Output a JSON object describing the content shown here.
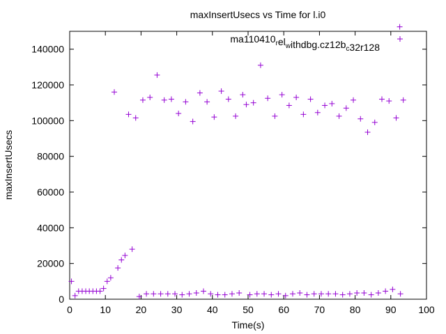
{
  "chart_data": {
    "type": "scatter",
    "title": "maxInsertUsecs vs Time for l.i0",
    "xlabel": "Time(s)",
    "ylabel": "maxInsertUsecs",
    "xlim": [
      0,
      100
    ],
    "ylim": [
      0,
      150000
    ],
    "grid": false,
    "legend_position": "top-right",
    "marker": "+",
    "x_ticks": [
      "0",
      "10",
      "20",
      "30",
      "40",
      "50",
      "60",
      "70",
      "80",
      "90",
      "100"
    ],
    "y_ticks": [
      "0",
      "20000",
      "40000",
      "60000",
      "80000",
      "100000",
      "120000",
      "140000"
    ],
    "series": [
      {
        "name": "ma110410_rel_withdbg.cz12b_c32r128",
        "legend_parts": [
          {
            "text": "ma110410",
            "sub": false
          },
          {
            "text": "r",
            "sub": true
          },
          {
            "text": "el",
            "sub": false
          },
          {
            "text": "w",
            "sub": true
          },
          {
            "text": "ithdbg.cz12b",
            "sub": false
          },
          {
            "text": "c",
            "sub": true
          },
          {
            "text": "32r128",
            "sub": false
          }
        ],
        "color": "#9400d3",
        "points": [
          [
            0.5,
            10000
          ],
          [
            1.5,
            2000
          ],
          [
            2.5,
            4500
          ],
          [
            3.5,
            4500
          ],
          [
            4.5,
            4500
          ],
          [
            5.5,
            4500
          ],
          [
            6.5,
            4500
          ],
          [
            7.5,
            4500
          ],
          [
            8.5,
            4500
          ],
          [
            9.5,
            6000
          ],
          [
            10.5,
            10000
          ],
          [
            11.5,
            12000
          ],
          [
            12.5,
            116000
          ],
          [
            13.5,
            17500
          ],
          [
            14.5,
            22000
          ],
          [
            15.5,
            24500
          ],
          [
            16.5,
            103500
          ],
          [
            17.5,
            28000
          ],
          [
            18.5,
            101500
          ],
          [
            19.5,
            1500
          ],
          [
            20.5,
            111500
          ],
          [
            21.5,
            3000
          ],
          [
            22.5,
            113000
          ],
          [
            23.5,
            3000
          ],
          [
            24.5,
            125500
          ],
          [
            25.5,
            3000
          ],
          [
            26.5,
            111500
          ],
          [
            27.5,
            3000
          ],
          [
            28.5,
            112000
          ],
          [
            29.5,
            3000
          ],
          [
            30.5,
            104000
          ],
          [
            31.5,
            2500
          ],
          [
            32.5,
            110500
          ],
          [
            33.5,
            3000
          ],
          [
            34.5,
            99500
          ],
          [
            35.5,
            3500
          ],
          [
            36.5,
            115500
          ],
          [
            37.5,
            4500
          ],
          [
            38.5,
            110500
          ],
          [
            39.5,
            3000
          ],
          [
            40.5,
            102000
          ],
          [
            41.5,
            2500
          ],
          [
            42.5,
            116500
          ],
          [
            43.5,
            2500
          ],
          [
            44.5,
            112000
          ],
          [
            45.5,
            3000
          ],
          [
            46.5,
            102500
          ],
          [
            47.5,
            3500
          ],
          [
            48.5,
            114500
          ],
          [
            49.5,
            109000
          ],
          [
            50.5,
            2500
          ],
          [
            51.5,
            110000
          ],
          [
            52.5,
            3000
          ],
          [
            53.5,
            131000
          ],
          [
            54.5,
            3000
          ],
          [
            55.5,
            112500
          ],
          [
            56.5,
            2500
          ],
          [
            57.5,
            102500
          ],
          [
            58.5,
            3000
          ],
          [
            59.5,
            114500
          ],
          [
            60.5,
            2000
          ],
          [
            61.5,
            108500
          ],
          [
            62.5,
            3000
          ],
          [
            63.5,
            113000
          ],
          [
            64.5,
            3500
          ],
          [
            65.5,
            103500
          ],
          [
            66.5,
            2500
          ],
          [
            67.5,
            112000
          ],
          [
            68.5,
            3000
          ],
          [
            69.5,
            104500
          ],
          [
            70.5,
            3000
          ],
          [
            71.5,
            108500
          ],
          [
            72.5,
            3000
          ],
          [
            73.5,
            109500
          ],
          [
            74.5,
            3000
          ],
          [
            75.5,
            102500
          ],
          [
            76.5,
            2500
          ],
          [
            77.5,
            107000
          ],
          [
            78.5,
            3000
          ],
          [
            79.5,
            111500
          ],
          [
            80.5,
            3500
          ],
          [
            81.5,
            101000
          ],
          [
            82.5,
            3500
          ],
          [
            83.5,
            93500
          ],
          [
            84.5,
            2500
          ],
          [
            85.5,
            99000
          ],
          [
            86.5,
            3500
          ],
          [
            87.5,
            112000
          ],
          [
            88.5,
            4500
          ],
          [
            89.5,
            111000
          ],
          [
            90.5,
            5500
          ],
          [
            91.5,
            101500
          ],
          [
            92.5,
            152500
          ],
          [
            92.7,
            3000
          ],
          [
            93.5,
            111500
          ]
        ]
      }
    ]
  }
}
